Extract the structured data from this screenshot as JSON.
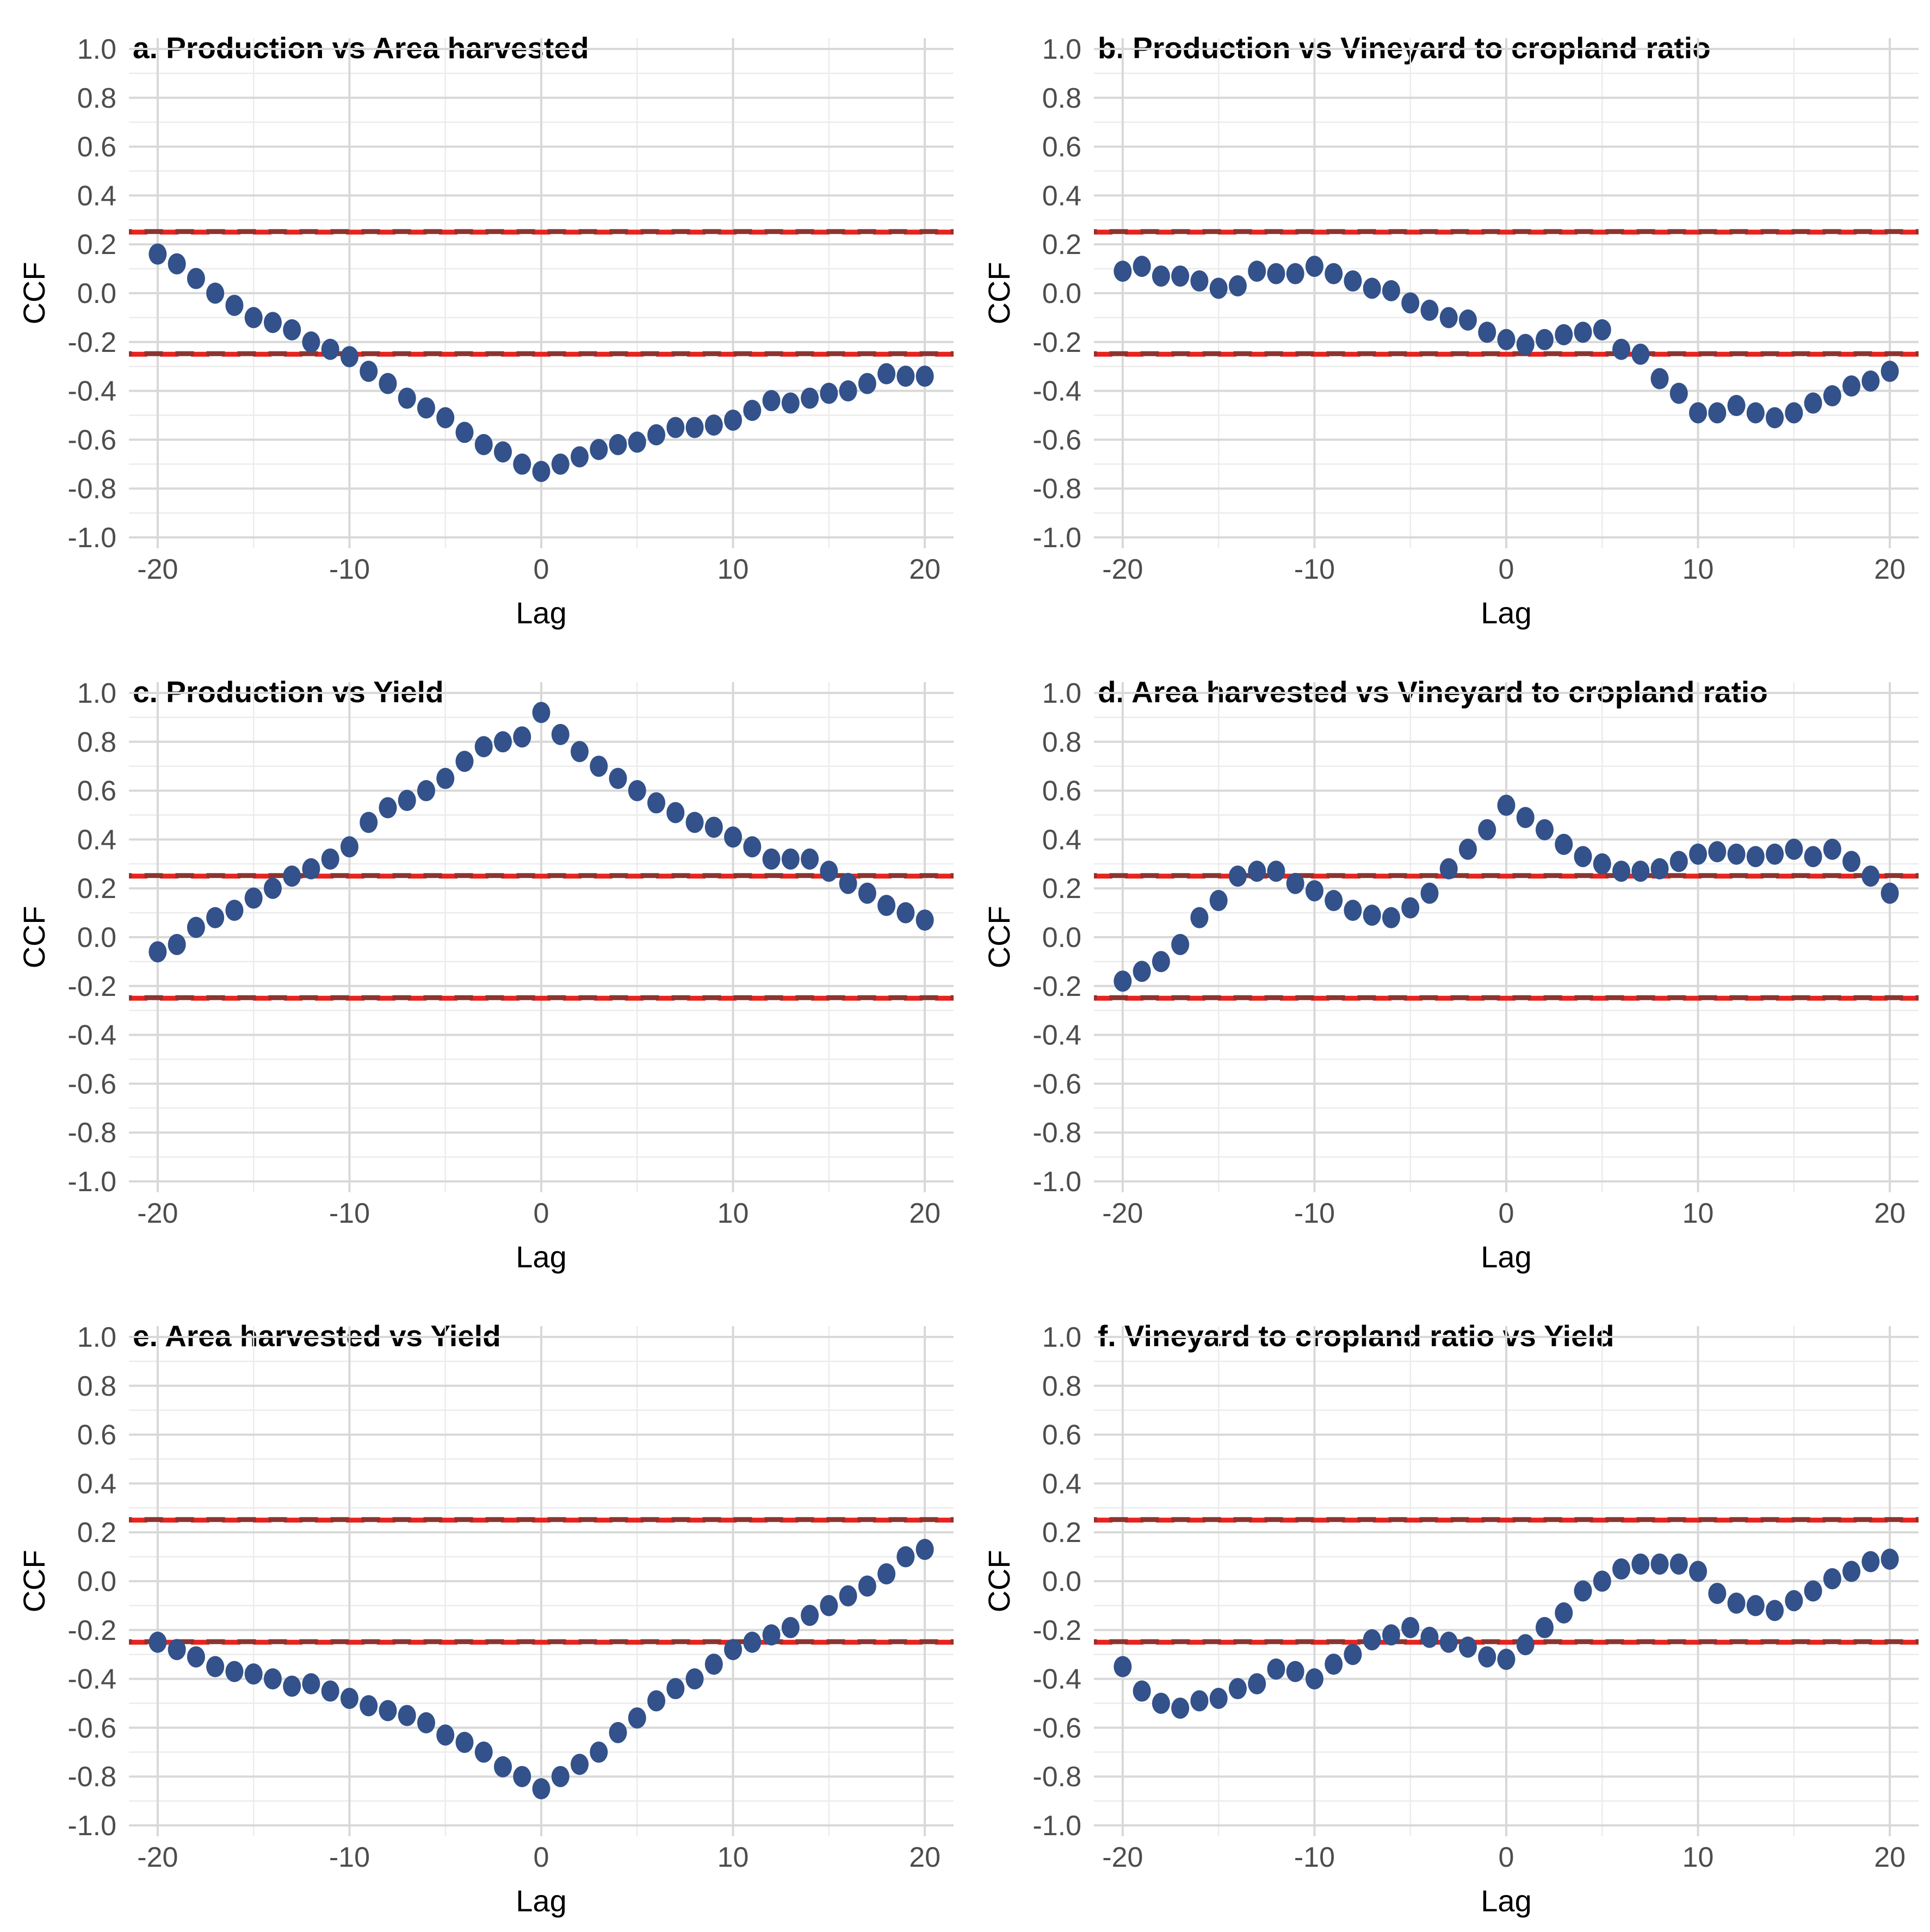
{
  "figure_description": "Six cross-correlation function (CCF) scatter panels in a 2x3 grid, each with red dashed significance bounds",
  "colors": {
    "point": "#33518a",
    "conf_red": "#e8231e",
    "conf_darkred": "#8c3430",
    "grid_major": "#d8d8d8",
    "grid_minor": "#ececec",
    "tick_text": "#4d4d4d",
    "axis_text": "#000000",
    "background": "#ffffff"
  },
  "chart_data": [
    {
      "type": "scatter",
      "panel": "a",
      "title": "a. Production vs Area harvested",
      "xlabel": "Lag",
      "ylabel": "CCF",
      "x_start": -20,
      "x_step": 1,
      "xlim": [
        -21.5,
        21.5
      ],
      "ylim": [
        -1.045,
        1.045
      ],
      "grid": true,
      "legend": "none",
      "x_ticks": [
        "-20",
        "-10",
        "0",
        "10",
        "20"
      ],
      "y_ticks": [
        "1.0",
        "0.8",
        "0.6",
        "0.4",
        "0.2",
        "0.0",
        "-0.2",
        "-0.4",
        "-0.6",
        "-0.8",
        "-1.0"
      ],
      "conf_bounds": [
        0.25,
        -0.25
      ],
      "values": [
        0.16,
        0.12,
        0.06,
        0.0,
        -0.05,
        -0.1,
        -0.12,
        -0.15,
        -0.2,
        -0.23,
        -0.26,
        -0.32,
        -0.37,
        -0.43,
        -0.47,
        -0.51,
        -0.57,
        -0.62,
        -0.65,
        -0.7,
        -0.73,
        -0.7,
        -0.67,
        -0.64,
        -0.62,
        -0.61,
        -0.58,
        -0.55,
        -0.55,
        -0.54,
        -0.52,
        -0.48,
        -0.44,
        -0.45,
        -0.43,
        -0.41,
        -0.4,
        -0.37,
        -0.33,
        -0.34,
        -0.34
      ]
    },
    {
      "type": "scatter",
      "panel": "b",
      "title": "b. Production vs Vineyard to cropland ratio",
      "xlabel": "Lag",
      "ylabel": "CCF",
      "x_start": -20,
      "x_step": 1,
      "xlim": [
        -21.5,
        21.5
      ],
      "ylim": [
        -1.045,
        1.045
      ],
      "grid": true,
      "legend": "none",
      "x_ticks": [
        "-20",
        "-10",
        "0",
        "10",
        "20"
      ],
      "y_ticks": [
        "1.0",
        "0.8",
        "0.6",
        "0.4",
        "0.2",
        "0.0",
        "-0.2",
        "-0.4",
        "-0.6",
        "-0.8",
        "-1.0"
      ],
      "conf_bounds": [
        0.25,
        -0.25
      ],
      "values": [
        0.09,
        0.11,
        0.07,
        0.07,
        0.05,
        0.02,
        0.03,
        0.09,
        0.08,
        0.08,
        0.11,
        0.08,
        0.05,
        0.02,
        0.01,
        -0.04,
        -0.07,
        -0.1,
        -0.11,
        -0.16,
        -0.19,
        -0.21,
        -0.19,
        -0.17,
        -0.16,
        -0.15,
        -0.23,
        -0.25,
        -0.35,
        -0.41,
        -0.49,
        -0.49,
        -0.46,
        -0.49,
        -0.51,
        -0.49,
        -0.45,
        -0.42,
        -0.38,
        -0.36,
        -0.32
      ]
    },
    {
      "type": "scatter",
      "panel": "c",
      "title": "c. Production vs Yield",
      "xlabel": "Lag",
      "ylabel": "CCF",
      "x_start": -20,
      "x_step": 1,
      "xlim": [
        -21.5,
        21.5
      ],
      "ylim": [
        -1.045,
        1.045
      ],
      "grid": true,
      "legend": "none",
      "x_ticks": [
        "-20",
        "-10",
        "0",
        "10",
        "20"
      ],
      "y_ticks": [
        "1.0",
        "0.8",
        "0.6",
        "0.4",
        "0.2",
        "0.0",
        "-0.2",
        "-0.4",
        "-0.6",
        "-0.8",
        "-1.0"
      ],
      "conf_bounds": [
        0.25,
        -0.25
      ],
      "values": [
        -0.06,
        -0.03,
        0.04,
        0.08,
        0.11,
        0.16,
        0.2,
        0.25,
        0.28,
        0.32,
        0.37,
        0.47,
        0.53,
        0.56,
        0.6,
        0.65,
        0.72,
        0.78,
        0.8,
        0.82,
        0.92,
        0.83,
        0.76,
        0.7,
        0.65,
        0.6,
        0.55,
        0.51,
        0.47,
        0.45,
        0.41,
        0.37,
        0.32,
        0.32,
        0.32,
        0.27,
        0.22,
        0.18,
        0.13,
        0.1,
        0.07
      ]
    },
    {
      "type": "scatter",
      "panel": "d",
      "title": "d. Area harvested vs Vineyard to cropland ratio",
      "xlabel": "Lag",
      "ylabel": "CCF",
      "x_start": -20,
      "x_step": 1,
      "xlim": [
        -21.5,
        21.5
      ],
      "ylim": [
        -1.045,
        1.045
      ],
      "grid": true,
      "legend": "none",
      "x_ticks": [
        "-20",
        "-10",
        "0",
        "10",
        "20"
      ],
      "y_ticks": [
        "1.0",
        "0.8",
        "0.6",
        "0.4",
        "0.2",
        "0.0",
        "-0.2",
        "-0.4",
        "-0.6",
        "-0.8",
        "-1.0"
      ],
      "conf_bounds": [
        0.25,
        -0.25
      ],
      "values": [
        -0.18,
        -0.14,
        -0.1,
        -0.03,
        0.08,
        0.15,
        0.25,
        0.27,
        0.27,
        0.22,
        0.19,
        0.15,
        0.11,
        0.09,
        0.08,
        0.12,
        0.18,
        0.28,
        0.36,
        0.44,
        0.54,
        0.49,
        0.44,
        0.38,
        0.33,
        0.3,
        0.27,
        0.27,
        0.28,
        0.31,
        0.34,
        0.35,
        0.34,
        0.33,
        0.34,
        0.36,
        0.33,
        0.36,
        0.31,
        0.25,
        0.18
      ]
    },
    {
      "type": "scatter",
      "panel": "e",
      "title": "e. Area harvested vs Yield",
      "xlabel": "Lag",
      "ylabel": "CCF",
      "x_start": -20,
      "x_step": 1,
      "xlim": [
        -21.5,
        21.5
      ],
      "ylim": [
        -1.045,
        1.045
      ],
      "grid": true,
      "legend": "none",
      "x_ticks": [
        "-20",
        "-10",
        "0",
        "10",
        "20"
      ],
      "y_ticks": [
        "1.0",
        "0.8",
        "0.6",
        "0.4",
        "0.2",
        "0.0",
        "-0.2",
        "-0.4",
        "-0.6",
        "-0.8",
        "-1.0"
      ],
      "conf_bounds": [
        0.25,
        -0.25
      ],
      "values": [
        -0.25,
        -0.28,
        -0.31,
        -0.35,
        -0.37,
        -0.38,
        -0.4,
        -0.43,
        -0.42,
        -0.45,
        -0.48,
        -0.51,
        -0.53,
        -0.55,
        -0.58,
        -0.63,
        -0.66,
        -0.7,
        -0.76,
        -0.8,
        -0.85,
        -0.8,
        -0.75,
        -0.7,
        -0.62,
        -0.56,
        -0.49,
        -0.44,
        -0.4,
        -0.34,
        -0.28,
        -0.25,
        -0.22,
        -0.19,
        -0.14,
        -0.1,
        -0.06,
        -0.02,
        0.03,
        0.1,
        0.13
      ]
    },
    {
      "type": "scatter",
      "panel": "f",
      "title": "f. Vineyard to cropland ratio vs Yield",
      "xlabel": "Lag",
      "ylabel": "CCF",
      "x_start": -20,
      "x_step": 1,
      "xlim": [
        -21.5,
        21.5
      ],
      "ylim": [
        -1.045,
        1.045
      ],
      "grid": true,
      "legend": "none",
      "x_ticks": [
        "-20",
        "-10",
        "0",
        "10",
        "20"
      ],
      "y_ticks": [
        "1.0",
        "0.8",
        "0.6",
        "0.4",
        "0.2",
        "0.0",
        "-0.2",
        "-0.4",
        "-0.6",
        "-0.8",
        "-1.0"
      ],
      "conf_bounds": [
        0.25,
        -0.25
      ],
      "values": [
        -0.35,
        -0.45,
        -0.5,
        -0.52,
        -0.49,
        -0.48,
        -0.44,
        -0.42,
        -0.36,
        -0.37,
        -0.4,
        -0.34,
        -0.3,
        -0.24,
        -0.22,
        -0.19,
        -0.23,
        -0.25,
        -0.27,
        -0.31,
        -0.32,
        -0.26,
        -0.19,
        -0.13,
        -0.04,
        0.0,
        0.05,
        0.07,
        0.07,
        0.07,
        0.04,
        -0.05,
        -0.09,
        -0.1,
        -0.12,
        -0.08,
        -0.04,
        0.01,
        0.04,
        0.08,
        0.09
      ]
    }
  ]
}
